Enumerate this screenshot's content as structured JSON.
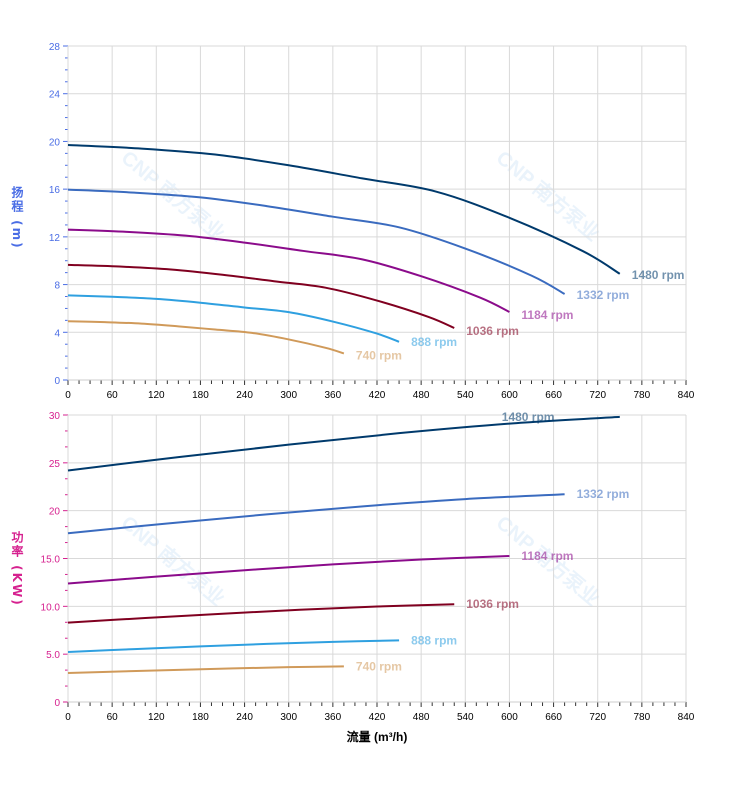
{
  "watermark": "CNP 南方泵业",
  "chart_data": [
    {
      "type": "line",
      "ylabel": "扬程 (m)",
      "xlabel": "",
      "xlim": [
        0,
        840
      ],
      "ylim": [
        0,
        28
      ],
      "xticks": [
        "0",
        "60",
        "120",
        "180",
        "240",
        "300",
        "360",
        "420",
        "480",
        "540",
        "600",
        "660",
        "720",
        "780",
        "840"
      ],
      "yticks": [
        "0",
        "4",
        "8",
        "12",
        "16",
        "20",
        "24",
        "28"
      ],
      "axis_color": "#4a6de5",
      "grid": true,
      "series": [
        {
          "name": "1480 rpm",
          "color": "#003a6c",
          "x": [
            0,
            100,
            200,
            300,
            400,
            500,
            600,
            700,
            750
          ],
          "y": [
            19.7,
            19.4,
            18.9,
            18.0,
            16.9,
            15.8,
            13.6,
            10.8,
            8.9
          ]
        },
        {
          "name": "1332 rpm",
          "color": "#3a6bbf",
          "x": [
            0,
            90,
            180,
            270,
            360,
            450,
            540,
            630,
            675
          ],
          "y": [
            15.96,
            15.71,
            15.31,
            14.58,
            13.69,
            12.8,
            11.02,
            8.75,
            7.21
          ]
        },
        {
          "name": "1184 rpm",
          "color": "#8b0b8b",
          "x": [
            0,
            80,
            160,
            240,
            320,
            400,
            480,
            560,
            600
          ],
          "y": [
            12.61,
            12.42,
            12.1,
            11.52,
            10.82,
            10.11,
            8.7,
            6.91,
            5.7
          ]
        },
        {
          "name": "1036 rpm",
          "color": "#800020",
          "x": [
            0,
            70,
            140,
            210,
            280,
            350,
            420,
            490,
            525
          ],
          "y": [
            9.65,
            9.51,
            9.26,
            8.82,
            8.28,
            7.74,
            6.66,
            5.29,
            4.36
          ]
        },
        {
          "name": "888 rpm",
          "color": "#2fa0e0",
          "x": [
            0,
            60,
            120,
            180,
            240,
            300,
            360,
            420,
            450
          ],
          "y": [
            7.09,
            6.98,
            6.8,
            6.48,
            6.08,
            5.69,
            4.9,
            3.89,
            3.2
          ]
        },
        {
          "name": "740 rpm",
          "color": "#d09a5a",
          "x": [
            0,
            50,
            100,
            150,
            200,
            250,
            300,
            350,
            375
          ],
          "y": [
            4.93,
            4.85,
            4.73,
            4.5,
            4.23,
            3.95,
            3.4,
            2.7,
            2.23
          ]
        }
      ]
    },
    {
      "type": "line",
      "ylabel": "功率 (KW)",
      "xlabel": "流量 (m³/h)",
      "xlim": [
        0,
        840
      ],
      "ylim": [
        0,
        30
      ],
      "xticks": [
        "0",
        "60",
        "120",
        "180",
        "240",
        "300",
        "360",
        "420",
        "480",
        "540",
        "600",
        "660",
        "720",
        "780",
        "840"
      ],
      "yticks": [
        "0",
        "5.0",
        "10.0",
        "15.0",
        "20",
        "25",
        "30"
      ],
      "axis_color": "#d6218f",
      "grid": true,
      "series": [
        {
          "name": "1480 rpm",
          "color": "#003a6c",
          "x": [
            0,
            150,
            300,
            450,
            600,
            750
          ],
          "y": [
            24.2,
            25.6,
            26.9,
            28.1,
            29.1,
            29.8
          ]
        },
        {
          "name": "1332 rpm",
          "color": "#3a6bbf",
          "x": [
            0,
            135,
            270,
            405,
            540,
            675
          ],
          "y": [
            17.64,
            18.66,
            19.61,
            20.48,
            21.21,
            21.72
          ]
        },
        {
          "name": "1184 rpm",
          "color": "#8b0b8b",
          "x": [
            0,
            120,
            240,
            360,
            480,
            600
          ],
          "y": [
            12.39,
            13.11,
            13.77,
            14.39,
            14.9,
            15.26
          ]
        },
        {
          "name": "1036 rpm",
          "color": "#800020",
          "x": [
            0,
            105,
            210,
            315,
            420,
            525
          ],
          "y": [
            8.3,
            8.78,
            9.23,
            9.64,
            9.98,
            10.22
          ]
        },
        {
          "name": "888 rpm",
          "color": "#2fa0e0",
          "x": [
            0,
            90,
            180,
            270,
            360,
            450
          ],
          "y": [
            5.23,
            5.53,
            5.81,
            6.07,
            6.29,
            6.44
          ]
        },
        {
          "name": "740 rpm",
          "color": "#d09a5a",
          "x": [
            0,
            75,
            150,
            225,
            300,
            375
          ],
          "y": [
            3.03,
            3.2,
            3.36,
            3.51,
            3.64,
            3.73
          ]
        }
      ]
    }
  ]
}
